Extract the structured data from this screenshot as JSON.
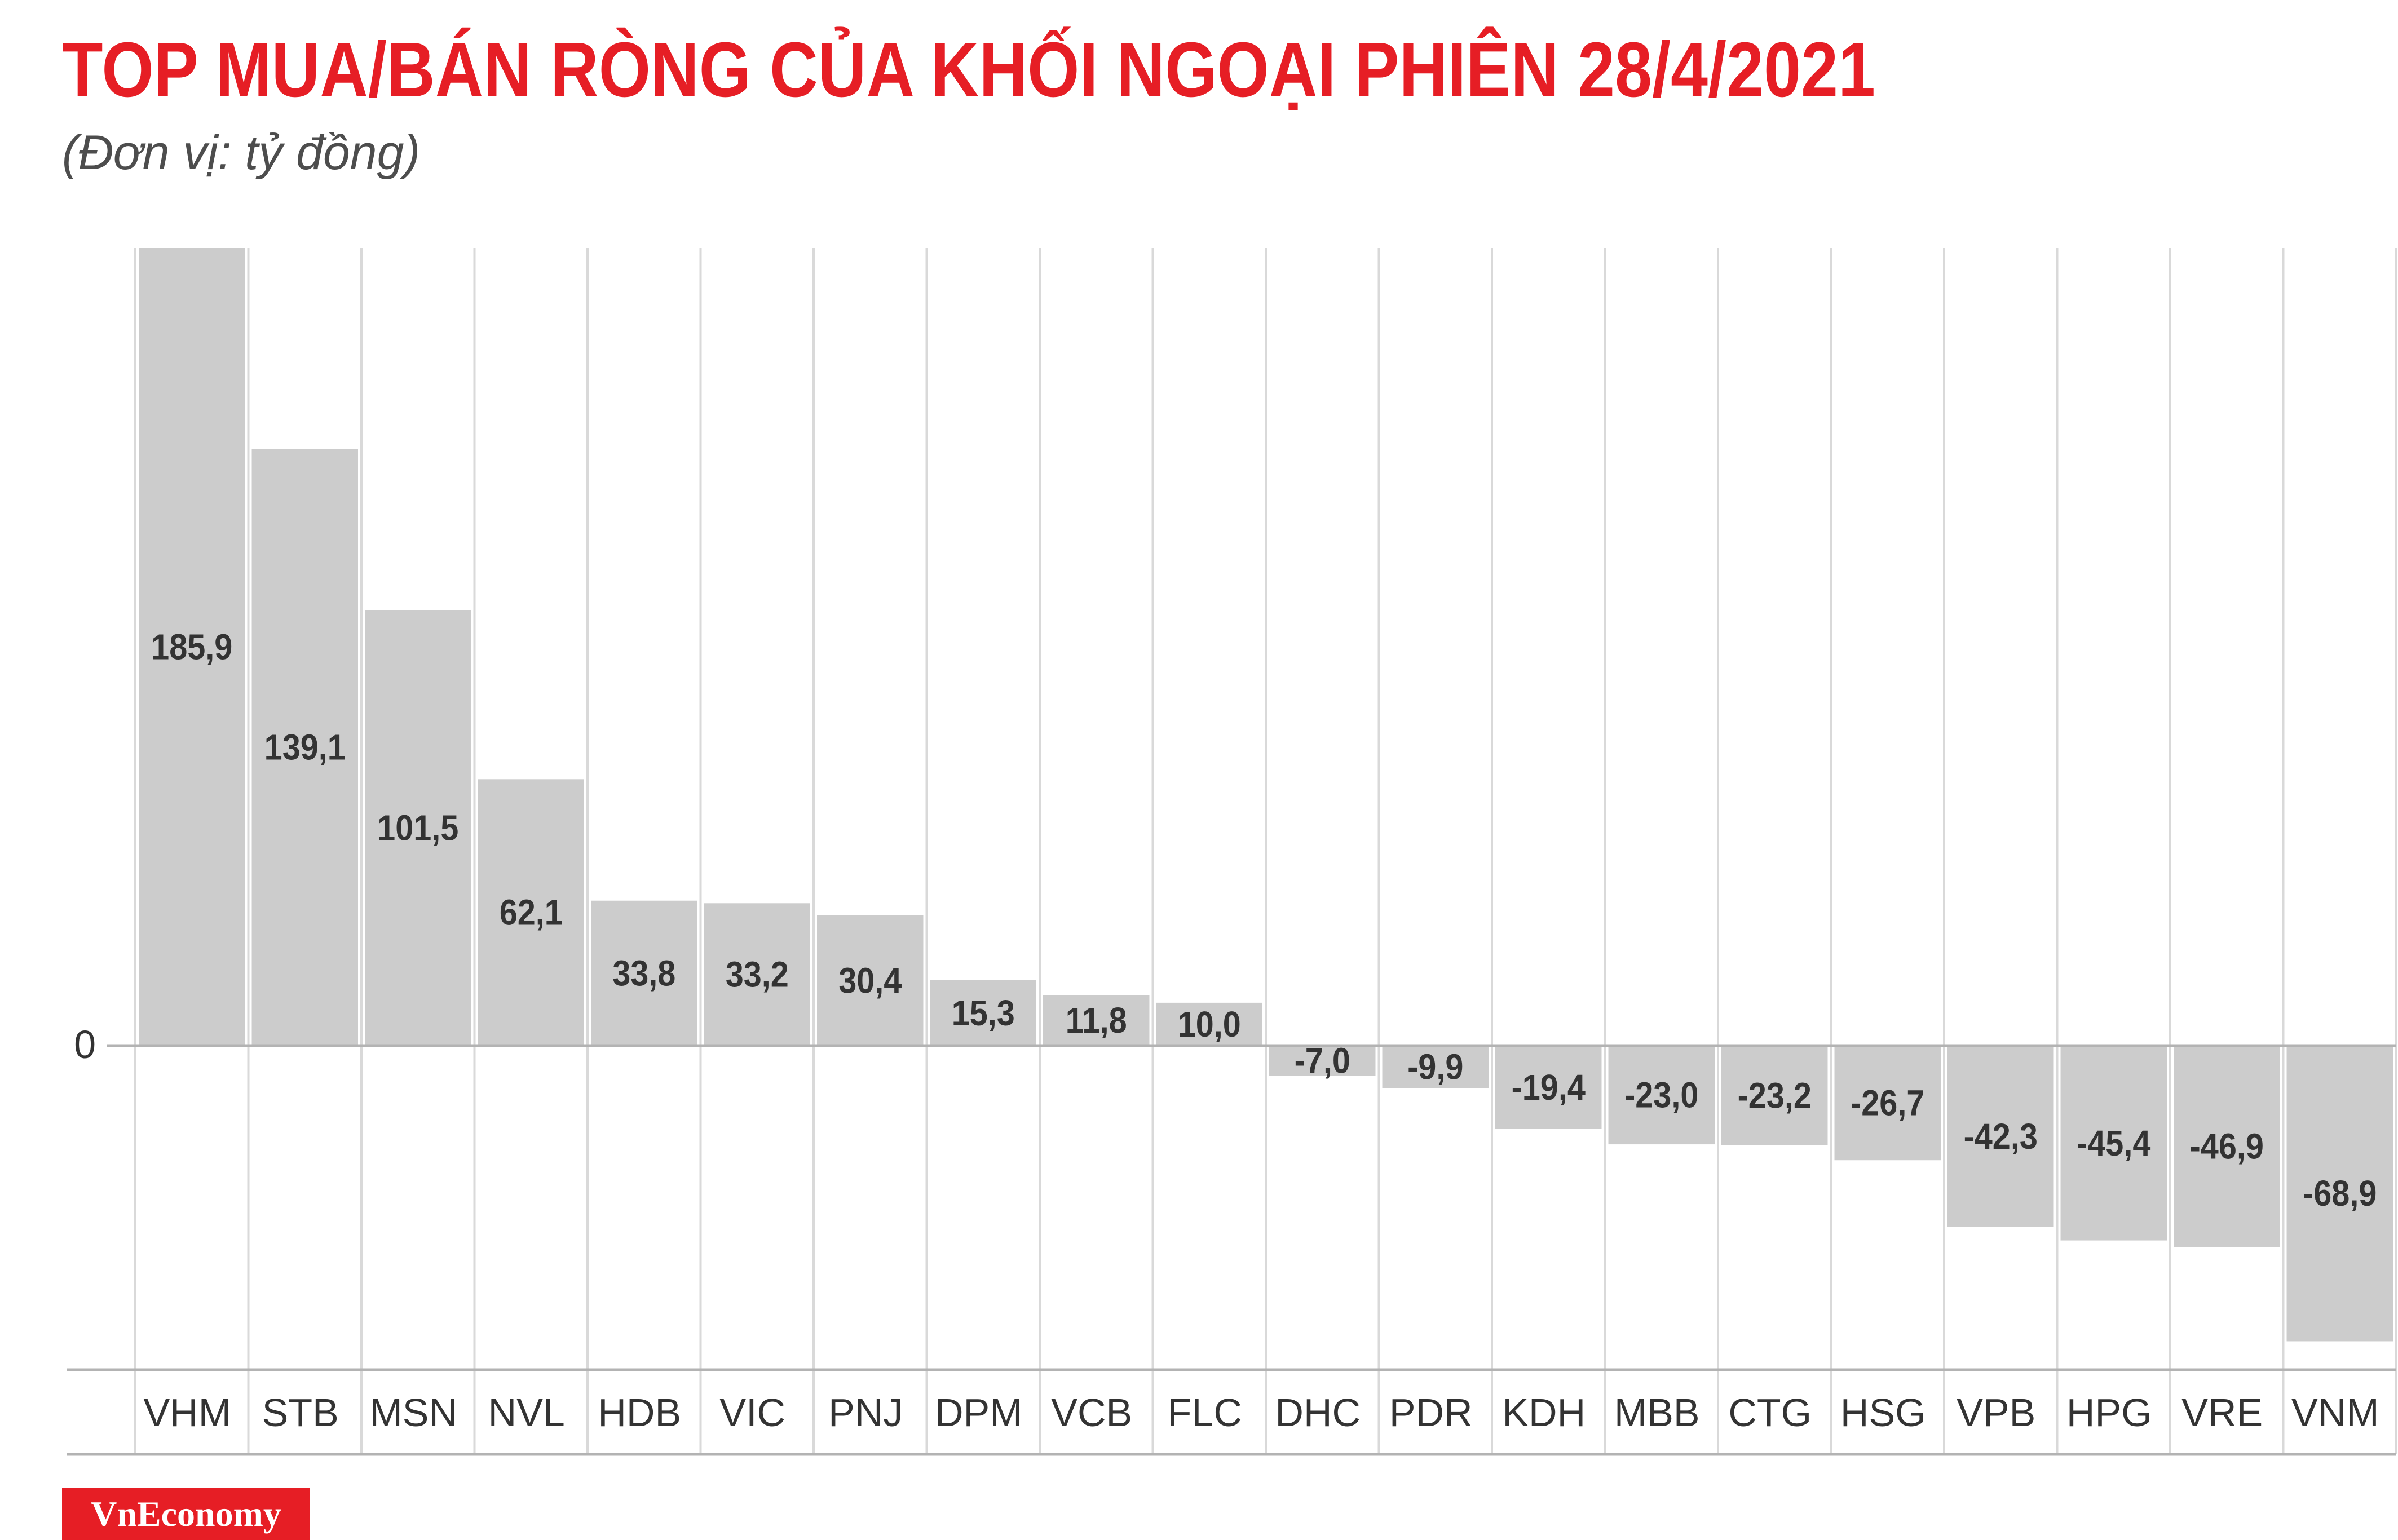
{
  "header": {
    "title": "TOP MUA/BÁN RÒNG CỦA KHỐI NGOẠI PHIÊN 28/4/2021",
    "subtitle": "(Đơn vị: tỷ đồng)"
  },
  "brand": {
    "label": "VnEconomy",
    "color": "#e61e25"
  },
  "chart_data": {
    "type": "bar",
    "title": "TOP MUA/BÁN RÒNG CỦA KHỐI NGOẠI PHIÊN 28/4/2021",
    "subtitle": "(Đơn vị: tỷ đồng)",
    "xlabel": "",
    "ylabel": "",
    "categories": [
      "VHM",
      "STB",
      "MSN",
      "NVL",
      "HDB",
      "VIC",
      "PNJ",
      "DPM",
      "VCB",
      "FLC",
      "DHC",
      "PDR",
      "KDH",
      "MBB",
      "CTG",
      "HSG",
      "VPB",
      "HPG",
      "VRE",
      "VNM"
    ],
    "values": [
      185.9,
      139.1,
      101.5,
      62.1,
      33.8,
      33.2,
      30.4,
      15.3,
      11.8,
      10.0,
      -7.0,
      -9.9,
      -19.4,
      -23.0,
      -23.2,
      -26.7,
      -42.3,
      -45.4,
      -46.9,
      -68.9
    ],
    "value_labels": [
      "185,9",
      "139,1",
      "101,5",
      "62,1",
      "33,8",
      "33,2",
      "30,4",
      "15,3",
      "11,8",
      "10,0",
      "-7,0",
      "-9,9",
      "-19,4",
      "-23,0",
      "-23,2",
      "-26,7",
      "-42,3",
      "-45,4",
      "-46,9",
      "-68,9"
    ],
    "zero_label": "0",
    "ylim": [
      -75.0,
      185.9
    ],
    "grid": true,
    "legend": "none",
    "bar_color": "#cccccc"
  }
}
